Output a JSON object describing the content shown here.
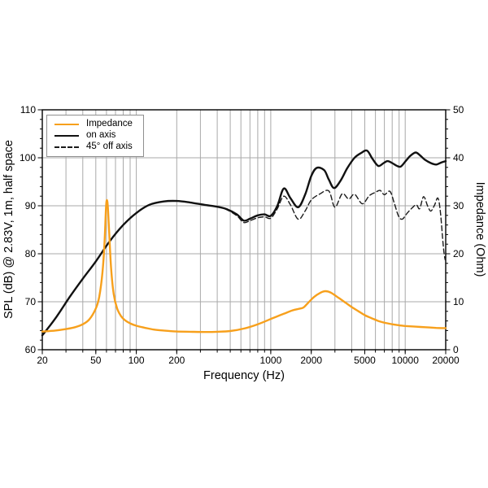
{
  "chart_data": {
    "type": "line",
    "title": "",
    "xlabel": "Frequency (Hz)",
    "ylabel_left": "SPL (dB) @ 2.83V, 1m, half space",
    "ylabel_right": "Impedance (Ohm)",
    "x_scale": "log",
    "x_range": [
      20,
      20000
    ],
    "y_left_range": [
      60,
      110
    ],
    "y_right_range": [
      0,
      50
    ],
    "grid": "on",
    "legend_position": "top-left",
    "x_tick_labels": [
      20,
      50,
      100,
      200,
      1000,
      2000,
      5000,
      10000,
      20000
    ],
    "x_gridlines": [
      30,
      40,
      50,
      60,
      70,
      80,
      90,
      100,
      200,
      300,
      400,
      500,
      600,
      700,
      800,
      900,
      1000,
      2000,
      3000,
      4000,
      5000,
      6000,
      7000,
      8000,
      9000,
      10000
    ],
    "y_left_ticks": [
      60,
      70,
      80,
      90,
      100,
      110
    ],
    "y_right_ticks": [
      0,
      10,
      20,
      30,
      40,
      50
    ],
    "y_gridlines_left": [
      70,
      80,
      90,
      100
    ],
    "y_minor_step": 2,
    "legend": [
      {
        "label": "Impedance",
        "color": "#f7a01c",
        "style": "solid"
      },
      {
        "label": "on axis",
        "color": "#111111",
        "style": "solid"
      },
      {
        "label": "45° off axis",
        "color": "#1a1a1a",
        "style": "dashed"
      }
    ],
    "series": [
      {
        "name": "Impedance",
        "axis": "right",
        "unit": "Ohm",
        "color": "#f7a01c",
        "style": "solid",
        "points": [
          [
            20,
            3.8
          ],
          [
            25,
            4.0
          ],
          [
            30,
            4.3
          ],
          [
            35,
            4.7
          ],
          [
            40,
            5.3
          ],
          [
            45,
            6.4
          ],
          [
            50,
            8.6
          ],
          [
            53,
            11
          ],
          [
            56,
            16
          ],
          [
            58,
            22
          ],
          [
            59.5,
            29.5
          ],
          [
            60.5,
            31.2
          ],
          [
            61.5,
            29.5
          ],
          [
            63,
            24
          ],
          [
            65,
            17
          ],
          [
            68,
            11.5
          ],
          [
            72,
            8.6
          ],
          [
            77,
            7.0
          ],
          [
            82,
            6.2
          ],
          [
            90,
            5.5
          ],
          [
            100,
            5.0
          ],
          [
            115,
            4.6
          ],
          [
            135,
            4.2
          ],
          [
            160,
            4.0
          ],
          [
            200,
            3.8
          ],
          [
            250,
            3.75
          ],
          [
            320,
            3.7
          ],
          [
            400,
            3.75
          ],
          [
            500,
            3.9
          ],
          [
            630,
            4.4
          ],
          [
            800,
            5.3
          ],
          [
            1000,
            6.4
          ],
          [
            1250,
            7.5
          ],
          [
            1450,
            8.2
          ],
          [
            1600,
            8.5
          ],
          [
            1750,
            8.8
          ],
          [
            1900,
            9.8
          ],
          [
            2100,
            11.0
          ],
          [
            2350,
            11.9
          ],
          [
            2550,
            12.2
          ],
          [
            2800,
            11.9
          ],
          [
            3200,
            10.8
          ],
          [
            3600,
            9.8
          ],
          [
            4000,
            8.9
          ],
          [
            4500,
            8.0
          ],
          [
            5000,
            7.2
          ],
          [
            5600,
            6.6
          ],
          [
            6300,
            6.0
          ],
          [
            7100,
            5.6
          ],
          [
            8000,
            5.3
          ],
          [
            9000,
            5.1
          ],
          [
            10000,
            4.95
          ],
          [
            11500,
            4.85
          ],
          [
            13000,
            4.75
          ],
          [
            15000,
            4.65
          ],
          [
            17000,
            4.55
          ],
          [
            19000,
            4.5
          ],
          [
            20000,
            4.5
          ]
        ]
      },
      {
        "name": "45° off axis",
        "axis": "left",
        "unit": "dB",
        "color": "#1a1a1a",
        "style": "dashed",
        "points": [
          [
            20,
            63
          ],
          [
            25,
            66.5
          ],
          [
            32,
            71
          ],
          [
            40,
            74.8
          ],
          [
            50,
            78.4
          ],
          [
            63,
            82.5
          ],
          [
            80,
            86
          ],
          [
            100,
            88.5
          ],
          [
            125,
            90.2
          ],
          [
            160,
            90.9
          ],
          [
            200,
            91
          ],
          [
            250,
            90.7
          ],
          [
            320,
            90.2
          ],
          [
            400,
            89.8
          ],
          [
            470,
            89.2
          ],
          [
            560,
            87.9
          ],
          [
            630,
            86.5
          ],
          [
            700,
            86.9
          ],
          [
            800,
            87.5
          ],
          [
            900,
            87.7
          ],
          [
            1000,
            87.4
          ],
          [
            1120,
            89.4
          ],
          [
            1250,
            92
          ],
          [
            1400,
            90.2
          ],
          [
            1600,
            87.2
          ],
          [
            1800,
            88.9
          ],
          [
            2000,
            91.2
          ],
          [
            2300,
            92.4
          ],
          [
            2700,
            93.1
          ],
          [
            3000,
            89.7
          ],
          [
            3400,
            92.5
          ],
          [
            3800,
            91.4
          ],
          [
            4200,
            92.4
          ],
          [
            4800,
            90.4
          ],
          [
            5400,
            92.1
          ],
          [
            6000,
            92.8
          ],
          [
            6500,
            93.2
          ],
          [
            7000,
            92.3
          ],
          [
            7700,
            93
          ],
          [
            8300,
            90.5
          ],
          [
            8900,
            87.9
          ],
          [
            9500,
            87.2
          ],
          [
            10300,
            88.4
          ],
          [
            11200,
            89.5
          ],
          [
            12100,
            90.2
          ],
          [
            12800,
            89.4
          ],
          [
            13700,
            91.9
          ],
          [
            14700,
            89.9
          ],
          [
            15500,
            88.9
          ],
          [
            16500,
            90.1
          ],
          [
            17500,
            91.6
          ],
          [
            18300,
            88.5
          ],
          [
            19200,
            81.5
          ],
          [
            19800,
            78.8
          ],
          [
            20000,
            79.3
          ]
        ]
      },
      {
        "name": "on axis",
        "axis": "left",
        "unit": "dB",
        "color": "#111111",
        "style": "solid",
        "points": [
          [
            20,
            63
          ],
          [
            25,
            66.5
          ],
          [
            32,
            71
          ],
          [
            40,
            74.8
          ],
          [
            50,
            78.4
          ],
          [
            63,
            82.5
          ],
          [
            80,
            86
          ],
          [
            100,
            88.5
          ],
          [
            125,
            90.2
          ],
          [
            160,
            90.9
          ],
          [
            200,
            91
          ],
          [
            250,
            90.7
          ],
          [
            320,
            90.2
          ],
          [
            400,
            89.8
          ],
          [
            470,
            89.3
          ],
          [
            560,
            88.2
          ],
          [
            630,
            86.9
          ],
          [
            700,
            87.3
          ],
          [
            800,
            88
          ],
          [
            900,
            88.2
          ],
          [
            1000,
            87.9
          ],
          [
            1120,
            90
          ],
          [
            1250,
            93.6
          ],
          [
            1400,
            91.6
          ],
          [
            1600,
            89.7
          ],
          [
            1800,
            92.3
          ],
          [
            2000,
            96.2
          ],
          [
            2200,
            97.9
          ],
          [
            2500,
            97.4
          ],
          [
            2700,
            95.5
          ],
          [
            2950,
            93.7
          ],
          [
            3300,
            95.2
          ],
          [
            3700,
            97.8
          ],
          [
            4200,
            100
          ],
          [
            4700,
            101
          ],
          [
            5200,
            101.5
          ],
          [
            5700,
            99.8
          ],
          [
            6300,
            98.3
          ],
          [
            6900,
            98.9
          ],
          [
            7400,
            99.3
          ],
          [
            8000,
            98.9
          ],
          [
            8700,
            98.3
          ],
          [
            9300,
            98.2
          ],
          [
            10200,
            99.5
          ],
          [
            11000,
            100.5
          ],
          [
            12000,
            101.1
          ],
          [
            13000,
            100.4
          ],
          [
            14000,
            99.6
          ],
          [
            15500,
            98.9
          ],
          [
            17000,
            98.6
          ],
          [
            18500,
            99
          ],
          [
            20000,
            99.3
          ]
        ]
      }
    ]
  }
}
